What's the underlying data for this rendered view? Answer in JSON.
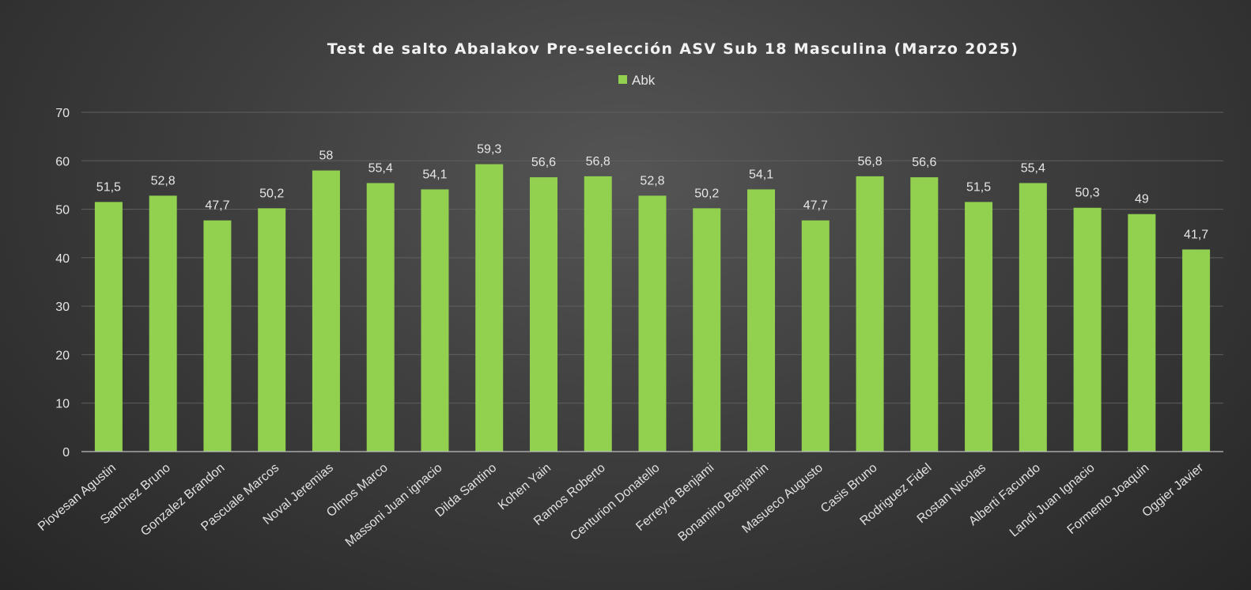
{
  "chart_data": {
    "type": "bar",
    "title": "Test de salto Abalakov Pre-selección ASV Sub 18 Masculina (Marzo 2025)",
    "legend_position": "top",
    "grid": true,
    "ylim": [
      0,
      70
    ],
    "yticks": [
      0,
      10,
      20,
      30,
      40,
      50,
      60,
      70
    ],
    "categories": [
      "Piovesan Agustin",
      "Sanchez Bruno",
      "Gonzalez Brandon",
      "Pascuale Marcos",
      "Noval Jeremias",
      "Olmos Marco",
      "Massoni Juan ignacio",
      "Dilda Santino",
      "Kohen Yain",
      "Ramos Roberto",
      "Centurion Donatello",
      "Ferreyra Benjami",
      "Bonamino Benjamin",
      "Masueco Augusto",
      "Casis Bruno",
      "Rodriguez Fidel",
      "Rostan Nicolas",
      "Alberti Facundo",
      "Landi Juan Ignacio",
      "Formento Joaquin",
      "Oggier Javier"
    ],
    "series": [
      {
        "name": "Abk",
        "color": "#92d050",
        "values": [
          51.5,
          52.8,
          47.7,
          50.2,
          58,
          55.4,
          54.1,
          59.3,
          56.6,
          56.8,
          52.8,
          50.2,
          54.1,
          47.7,
          56.8,
          56.6,
          51.5,
          55.4,
          50.3,
          49,
          41.7
        ],
        "labels": [
          "51,5",
          "52,8",
          "47,7",
          "50,2",
          "58",
          "55,4",
          "54,1",
          "59,3",
          "56,6",
          "56,8",
          "52,8",
          "50,2",
          "54,1",
          "47,7",
          "56,8",
          "56,6",
          "51,5",
          "55,4",
          "50,3",
          "49",
          "41,7"
        ]
      }
    ]
  }
}
